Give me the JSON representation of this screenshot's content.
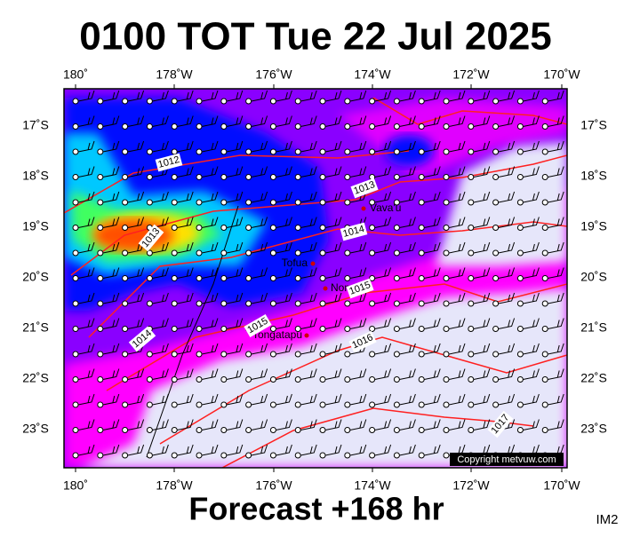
{
  "title": "0100 TOT Tue 22 Jul 2025",
  "footer": "Forecast +168 hr",
  "image_id": "IM2",
  "copyright": "Copyright metvuw.com",
  "longitude_labels": [
    "180˚",
    "178˚W",
    "176˚W",
    "174˚W",
    "172˚W",
    "170˚W"
  ],
  "latitude_labels": [
    "17˚S",
    "18˚S",
    "19˚S",
    "20˚S",
    "21˚S",
    "22˚S",
    "23˚S"
  ],
  "places": [
    "Vava'u",
    "Tofua",
    "Nomuka",
    "Tongatapu"
  ],
  "isobar_labels": [
    "1012",
    "1013",
    "1013",
    "1014",
    "1014",
    "1015",
    "1015",
    "1016",
    "1017"
  ]
}
